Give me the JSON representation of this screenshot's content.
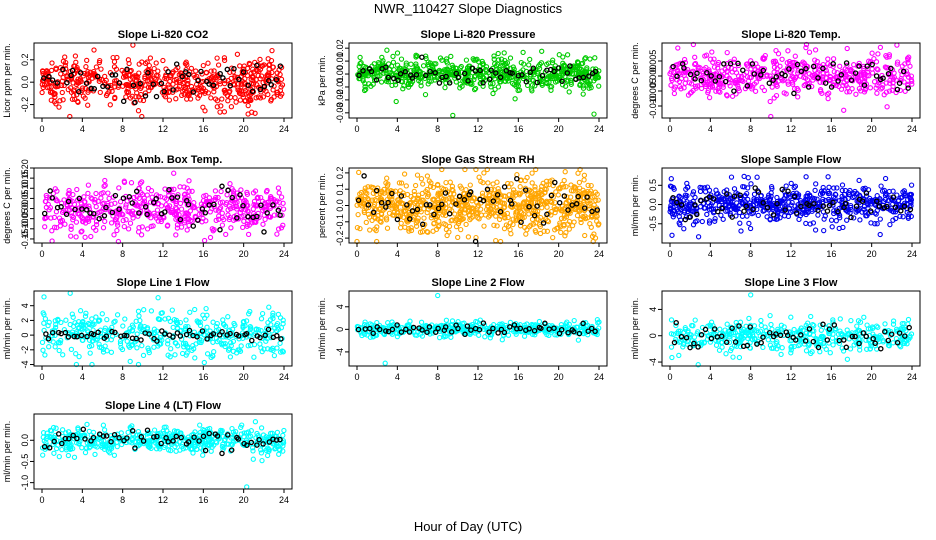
{
  "figure": {
    "title": "NWR_110427  Slope Diagnostics",
    "xlabel": "Hour of Day (UTC)"
  },
  "chart_data": [
    {
      "type": "scatter",
      "title": "Slope Li-820 CO2",
      "xlabel": "",
      "ylabel": "Licor ppm per min.",
      "color": "#ff0000",
      "xlim": [
        0,
        24
      ],
      "ylim": [
        -0.32,
        0.35
      ],
      "xticks": [
        0,
        4,
        8,
        12,
        16,
        20,
        24
      ],
      "yticks": [
        -0.2,
        0.0,
        0.2
      ],
      "ytick_labels": [
        "-0.2",
        "0.0",
        "0.2"
      ],
      "n_points": 560,
      "spread": 0.11,
      "black_spread": 0.08,
      "outliers": []
    },
    {
      "type": "scatter",
      "title": "Slope Li-820 Pressure",
      "xlabel": "",
      "ylabel": "kPa per min.",
      "color": "#00cc00",
      "xlim": [
        0,
        24
      ],
      "ylim": [
        -0.034,
        0.024
      ],
      "xticks": [
        0,
        4,
        8,
        12,
        16,
        20,
        24
      ],
      "yticks": [
        -0.03,
        -0.02,
        -0.01,
        0.0,
        0.01,
        0.02
      ],
      "ytick_labels": [
        "-0.03",
        "-0.02",
        "-0.01",
        "0.00",
        "0.01",
        "0.02"
      ],
      "n_points": 620,
      "spread": 0.006,
      "black_spread": 0.004,
      "outliers": [
        [
          9.5,
          -0.032
        ],
        [
          23.5,
          -0.031
        ]
      ]
    },
    {
      "type": "scatter",
      "title": "Slope Li-820 Temp.",
      "xlabel": "",
      "ylabel": "degrees C per min.",
      "color": "#ff00ff",
      "xlim": [
        0,
        24
      ],
      "ylim": [
        -0.014,
        0.011
      ],
      "xticks": [
        0,
        4,
        8,
        12,
        16,
        20,
        24
      ],
      "yticks": [
        -0.01,
        -0.005,
        0.0,
        0.005
      ],
      "ytick_labels": [
        "-0.010",
        "-0.005",
        "0.000",
        "0.005"
      ],
      "n_points": 520,
      "spread": 0.0038,
      "black_spread": 0.003,
      "outliers": [
        [
          10,
          -0.0135
        ]
      ]
    },
    {
      "type": "scatter",
      "title": "Slope Amb. Box Temp.",
      "xlabel": "",
      "ylabel": "degrees C per min.",
      "color": "#ff00ff",
      "xlim": [
        0,
        24
      ],
      "ylim": [
        -0.17,
        0.2
      ],
      "xticks": [
        0,
        4,
        8,
        12,
        16,
        20,
        24
      ],
      "yticks": [
        -0.15,
        -0.1,
        -0.05,
        0.0,
        0.05,
        0.1,
        0.15,
        0.2
      ],
      "ytick_labels": [
        "-0.15",
        "-0.10",
        "-0.05",
        "0.00",
        "0.05",
        "0.10",
        "0.15",
        "0.20"
      ],
      "n_points": 520,
      "spread": 0.06,
      "black_spread": 0.05,
      "outliers": [
        [
          1,
          -0.16
        ]
      ]
    },
    {
      "type": "scatter",
      "title": "Slope Gas Stream RH",
      "xlabel": "",
      "ylabel": "percent per min.",
      "color": "#ffa500",
      "xlim": [
        0,
        24
      ],
      "ylim": [
        -0.23,
        0.23
      ],
      "xticks": [
        0,
        4,
        8,
        12,
        16,
        20,
        24
      ],
      "yticks": [
        -0.2,
        -0.1,
        0.0,
        0.1,
        0.2
      ],
      "ytick_labels": [
        "-0.2",
        "-0.1",
        "0.0",
        "0.1",
        "0.2"
      ],
      "n_points": 820,
      "spread": 0.085,
      "black_spread": 0.07,
      "outliers": []
    },
    {
      "type": "scatter",
      "title": "Slope Sample Flow",
      "xlabel": "",
      "ylabel": "ml/min per min.",
      "color": "#0000ee",
      "xlim": [
        0,
        24
      ],
      "ylim": [
        -1.0,
        0.95
      ],
      "xticks": [
        0,
        4,
        8,
        12,
        16,
        20,
        24
      ],
      "yticks": [
        -0.5,
        0.0,
        0.5
      ],
      "ytick_labels": [
        "-0.5",
        "0.0",
        "0.5"
      ],
      "n_points": 620,
      "spread": 0.25,
      "black_spread": 0.18,
      "outliers": [
        [
          0.2,
          -0.8
        ],
        [
          13.5,
          0.72
        ]
      ]
    },
    {
      "type": "scatter",
      "title": "Slope Line 1 Flow",
      "xlabel": "",
      "ylabel": "ml/min per min.",
      "color": "#00ffff",
      "xlim": [
        0,
        24
      ],
      "ylim": [
        -4.2,
        6.0
      ],
      "xticks": [
        0,
        4,
        8,
        12,
        16,
        20,
        24
      ],
      "yticks": [
        -4,
        -2,
        0,
        2,
        4
      ],
      "ytick_labels": [
        "-4",
        "-2",
        "0",
        "2",
        "4"
      ],
      "n_points": 420,
      "spread": 1.6,
      "black_spread": 0.35,
      "outliers": [
        [
          0.2,
          5.2
        ],
        [
          2.8,
          5.7
        ]
      ]
    },
    {
      "type": "scatter",
      "title": "Slope Line 2 Flow",
      "xlabel": "",
      "ylabel": "ml/min per min.",
      "color": "#00ffff",
      "xlim": [
        0,
        24
      ],
      "ylim": [
        -6.5,
        6.8
      ],
      "xticks": [
        0,
        4,
        8,
        12,
        16,
        20,
        24
      ],
      "yticks": [
        -4,
        0,
        4
      ],
      "ytick_labels": [
        "-4",
        "0",
        "4"
      ],
      "n_points": 420,
      "spread": 0.65,
      "black_spread": 0.45,
      "outliers": [
        [
          8,
          6.0
        ],
        [
          2.8,
          -6.0
        ]
      ]
    },
    {
      "type": "scatter",
      "title": "Slope Line 3 Flow",
      "xlabel": "",
      "ylabel": "ml/min per min.",
      "color": "#00ffff",
      "xlim": [
        0,
        24
      ],
      "ylim": [
        -4.6,
        6.8
      ],
      "xticks": [
        0,
        4,
        8,
        12,
        16,
        20,
        24
      ],
      "yticks": [
        -4,
        0,
        4
      ],
      "ytick_labels": [
        "-4",
        "0",
        "4"
      ],
      "n_points": 420,
      "spread": 1.2,
      "black_spread": 1.0,
      "outliers": [
        [
          8,
          6.2
        ],
        [
          2.8,
          -4.4
        ]
      ]
    },
    {
      "type": "scatter",
      "title": "Slope Line 4 (LT) Flow",
      "xlabel": "",
      "ylabel": "ml/min per min.",
      "color": "#00ffff",
      "xlim": [
        0,
        24
      ],
      "ylim": [
        -1.15,
        0.62
      ],
      "xticks": [
        0,
        4,
        8,
        12,
        16,
        20,
        24
      ],
      "yticks": [
        -1.0,
        -0.5,
        0.0
      ],
      "ytick_labels": [
        "-1.0",
        "-0.5",
        "0.0"
      ],
      "n_points": 480,
      "spread": 0.15,
      "black_spread": 0.12,
      "outliers": [
        [
          20.3,
          -1.1
        ]
      ]
    }
  ]
}
